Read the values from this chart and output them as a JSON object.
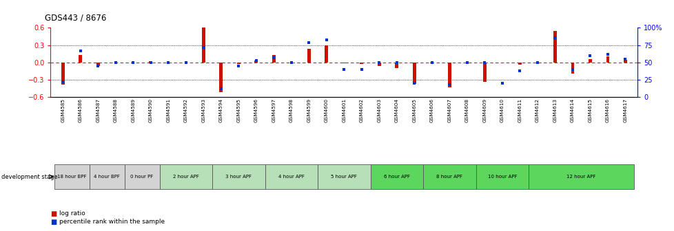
{
  "title": "GDS443 / 8676",
  "samples": [
    "GSM4585",
    "GSM4586",
    "GSM4587",
    "GSM4588",
    "GSM4589",
    "GSM4590",
    "GSM4591",
    "GSM4592",
    "GSM4593",
    "GSM4594",
    "GSM4595",
    "GSM4596",
    "GSM4597",
    "GSM4598",
    "GSM4599",
    "GSM4600",
    "GSM4601",
    "GSM4602",
    "GSM4603",
    "GSM4604",
    "GSM4605",
    "GSM4606",
    "GSM4607",
    "GSM4608",
    "GSM4609",
    "GSM4610",
    "GSM4611",
    "GSM4612",
    "GSM4613",
    "GSM4614",
    "GSM4615",
    "GSM4616",
    "GSM4617"
  ],
  "log_ratio": [
    -0.38,
    0.13,
    -0.06,
    0.0,
    0.0,
    0.02,
    0.0,
    0.0,
    0.6,
    -0.52,
    -0.03,
    0.03,
    0.13,
    0.0,
    0.24,
    0.3,
    -0.02,
    -0.03,
    -0.06,
    -0.1,
    -0.37,
    -0.02,
    -0.43,
    0.0,
    -0.34,
    0.0,
    -0.04,
    0.0,
    0.54,
    -0.19,
    0.06,
    0.1,
    0.04
  ],
  "percentile_rank": [
    22,
    67,
    45,
    50,
    50,
    50,
    50,
    50,
    72,
    12,
    45,
    53,
    57,
    50,
    78,
    82,
    40,
    40,
    50,
    50,
    20,
    50,
    18,
    50,
    50,
    20,
    38,
    50,
    85,
    40,
    60,
    62,
    55
  ],
  "stages": [
    {
      "label": "18 hour BPF",
      "start": 0,
      "end": 2,
      "color": "#d3d3d3"
    },
    {
      "label": "4 hour BPF",
      "start": 2,
      "end": 4,
      "color": "#d3d3d3"
    },
    {
      "label": "0 hour PF",
      "start": 4,
      "end": 6,
      "color": "#d3d3d3"
    },
    {
      "label": "2 hour APF",
      "start": 6,
      "end": 9,
      "color": "#b8e0b8"
    },
    {
      "label": "3 hour APF",
      "start": 9,
      "end": 12,
      "color": "#b8e0b8"
    },
    {
      "label": "4 hour APF",
      "start": 12,
      "end": 15,
      "color": "#b8e0b8"
    },
    {
      "label": "5 hour APF",
      "start": 15,
      "end": 18,
      "color": "#b8e0b8"
    },
    {
      "label": "6 hour APF",
      "start": 18,
      "end": 21,
      "color": "#5cd65c"
    },
    {
      "label": "8 hour APF",
      "start": 21,
      "end": 24,
      "color": "#5cd65c"
    },
    {
      "label": "10 hour APF",
      "start": 24,
      "end": 27,
      "color": "#5cd65c"
    },
    {
      "label": "12 hour APF",
      "start": 27,
      "end": 33,
      "color": "#5cd65c"
    }
  ],
  "ylim": [
    -0.6,
    0.6
  ],
  "yticks_left": [
    -0.6,
    -0.3,
    0.0,
    0.3,
    0.6
  ],
  "yticks_right_pct": [
    0,
    25,
    50,
    75,
    100
  ],
  "bar_color": "#cc1100",
  "dot_color": "#0033cc",
  "zero_line_color": "#cc2200",
  "background_color": "#ffffff"
}
